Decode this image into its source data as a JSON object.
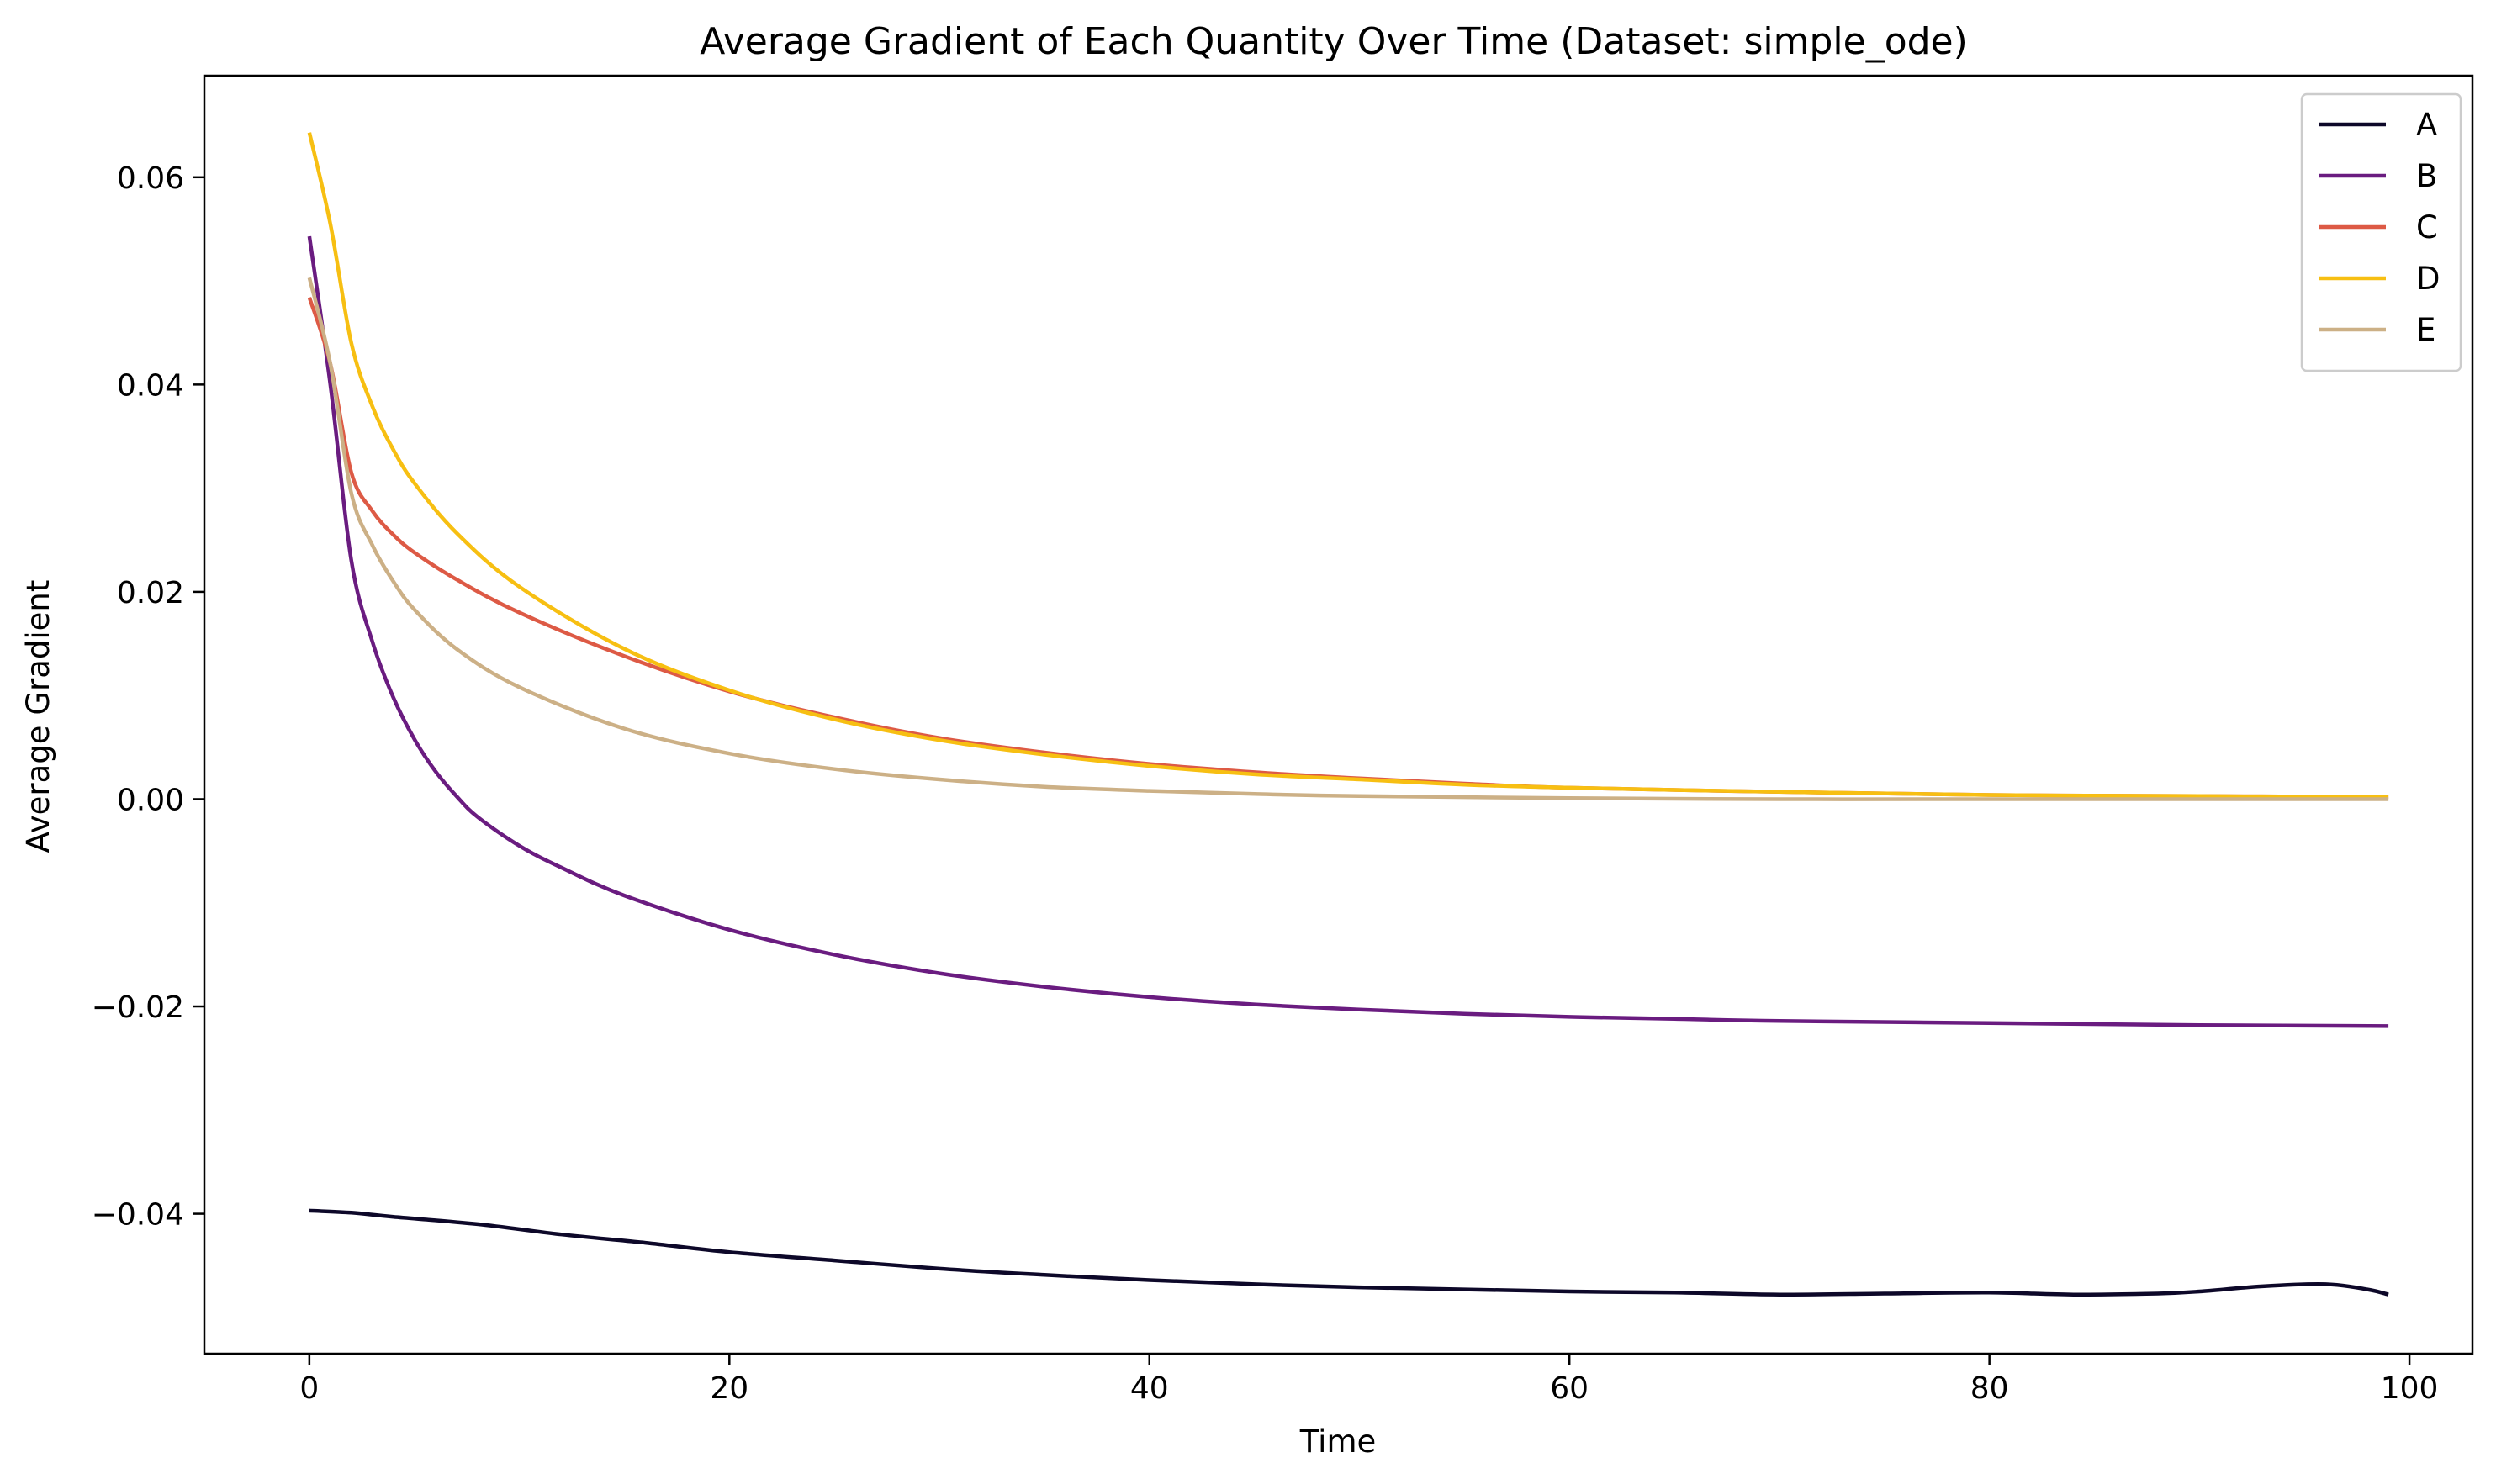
{
  "chart_data": {
    "type": "line",
    "title": "Average Gradient of Each Quantity Over Time (Dataset: simple_ode)",
    "xlabel": "Time",
    "ylabel": "Average Gradient",
    "xlim": [
      -5,
      103
    ],
    "ylim": [
      -0.0535,
      0.0698
    ],
    "xticks": [
      0,
      20,
      40,
      60,
      80,
      100
    ],
    "xtick_labels": [
      "0",
      "20",
      "40",
      "60",
      "80",
      "100"
    ],
    "yticks": [
      -0.04,
      -0.02,
      0.0,
      0.02,
      0.04,
      0.06
    ],
    "ytick_labels": [
      "−0.04",
      "−0.02",
      "0.00",
      "0.02",
      "0.04",
      "0.06"
    ],
    "grid": false,
    "legend_position": "upper right",
    "series": [
      {
        "name": "A",
        "color": "#0d0829",
        "points": [
          [
            0,
            -0.0397
          ],
          [
            2,
            -0.0399
          ],
          [
            4,
            -0.0403
          ],
          [
            8,
            -0.041
          ],
          [
            12,
            -0.042
          ],
          [
            16,
            -0.0428
          ],
          [
            20,
            -0.0437
          ],
          [
            25,
            -0.0445
          ],
          [
            30,
            -0.0453
          ],
          [
            35,
            -0.0459
          ],
          [
            40,
            -0.0464
          ],
          [
            45,
            -0.0468
          ],
          [
            50,
            -0.0471
          ],
          [
            55,
            -0.0473
          ],
          [
            60,
            -0.0475
          ],
          [
            65,
            -0.0476
          ],
          [
            70,
            -0.0478
          ],
          [
            75,
            -0.0477
          ],
          [
            80,
            -0.0476
          ],
          [
            84,
            -0.0478
          ],
          [
            88,
            -0.0477
          ],
          [
            90,
            -0.0475
          ],
          [
            93,
            -0.047
          ],
          [
            96,
            -0.0468
          ],
          [
            98,
            -0.0473
          ],
          [
            99,
            -0.0478
          ]
        ]
      },
      {
        "name": "B",
        "color": "#6a1c80",
        "points": [
          [
            0,
            0.0543
          ],
          [
            1,
            0.04
          ],
          [
            2,
            0.023
          ],
          [
            3,
            0.0152
          ],
          [
            4,
            0.0098
          ],
          [
            5,
            0.0058
          ],
          [
            6,
            0.0027
          ],
          [
            7,
            0.0003
          ],
          [
            8,
            -0.0017
          ],
          [
            10,
            -0.0045
          ],
          [
            12,
            -0.0066
          ],
          [
            15,
            -0.0093
          ],
          [
            20,
            -0.0126
          ],
          [
            25,
            -0.015
          ],
          [
            30,
            -0.0168
          ],
          [
            35,
            -0.0181
          ],
          [
            40,
            -0.0191
          ],
          [
            45,
            -0.0198
          ],
          [
            50,
            -0.0203
          ],
          [
            55,
            -0.0207
          ],
          [
            60,
            -0.021
          ],
          [
            65,
            -0.0212
          ],
          [
            70,
            -0.0214
          ],
          [
            80,
            -0.0216
          ],
          [
            90,
            -0.0218
          ],
          [
            99,
            -0.0219
          ]
        ]
      },
      {
        "name": "C",
        "color": "#dd5a45",
        "points": [
          [
            0,
            0.0484
          ],
          [
            1,
            0.042
          ],
          [
            2,
            0.0315
          ],
          [
            3,
            0.0278
          ],
          [
            4,
            0.0255
          ],
          [
            5,
            0.0238
          ],
          [
            7,
            0.0212
          ],
          [
            10,
            0.018
          ],
          [
            15,
            0.0138
          ],
          [
            20,
            0.0104
          ],
          [
            25,
            0.0079
          ],
          [
            30,
            0.0059
          ],
          [
            35,
            0.0045
          ],
          [
            40,
            0.0034
          ],
          [
            45,
            0.0026
          ],
          [
            50,
            0.002
          ],
          [
            55,
            0.0015
          ],
          [
            60,
            0.0011
          ],
          [
            70,
            0.0007
          ],
          [
            80,
            0.0004
          ],
          [
            90,
            0.0003
          ],
          [
            99,
            0.0002
          ]
        ]
      },
      {
        "name": "D",
        "color": "#f7bf12",
        "points": [
          [
            0,
            0.0643
          ],
          [
            1,
            0.0555
          ],
          [
            2,
            0.044
          ],
          [
            3,
            0.0379
          ],
          [
            4,
            0.0337
          ],
          [
            5,
            0.0305
          ],
          [
            7,
            0.0257
          ],
          [
            10,
            0.0205
          ],
          [
            15,
            0.0145
          ],
          [
            20,
            0.0105
          ],
          [
            25,
            0.0077
          ],
          [
            30,
            0.0057
          ],
          [
            35,
            0.0043
          ],
          [
            40,
            0.0032
          ],
          [
            45,
            0.0024
          ],
          [
            50,
            0.0019
          ],
          [
            55,
            0.0014
          ],
          [
            60,
            0.0011
          ],
          [
            70,
            0.0007
          ],
          [
            80,
            0.0004
          ],
          [
            90,
            0.0003
          ],
          [
            99,
            0.0002
          ]
        ]
      },
      {
        "name": "E",
        "color": "#ccb086",
        "points": [
          [
            0,
            0.0503
          ],
          [
            1,
            0.042
          ],
          [
            2,
            0.0295
          ],
          [
            3,
            0.0245
          ],
          [
            4,
            0.021
          ],
          [
            5,
            0.0183
          ],
          [
            7,
            0.0145
          ],
          [
            10,
            0.0108
          ],
          [
            15,
            0.0068
          ],
          [
            20,
            0.0044
          ],
          [
            25,
            0.0029
          ],
          [
            30,
            0.0019
          ],
          [
            35,
            0.0012
          ],
          [
            40,
            0.0008
          ],
          [
            45,
            0.0005
          ],
          [
            50,
            0.0003
          ],
          [
            60,
            0.0001
          ],
          [
            70,
            0.0
          ],
          [
            80,
            0.0
          ],
          [
            99,
            0.0
          ]
        ]
      }
    ]
  }
}
